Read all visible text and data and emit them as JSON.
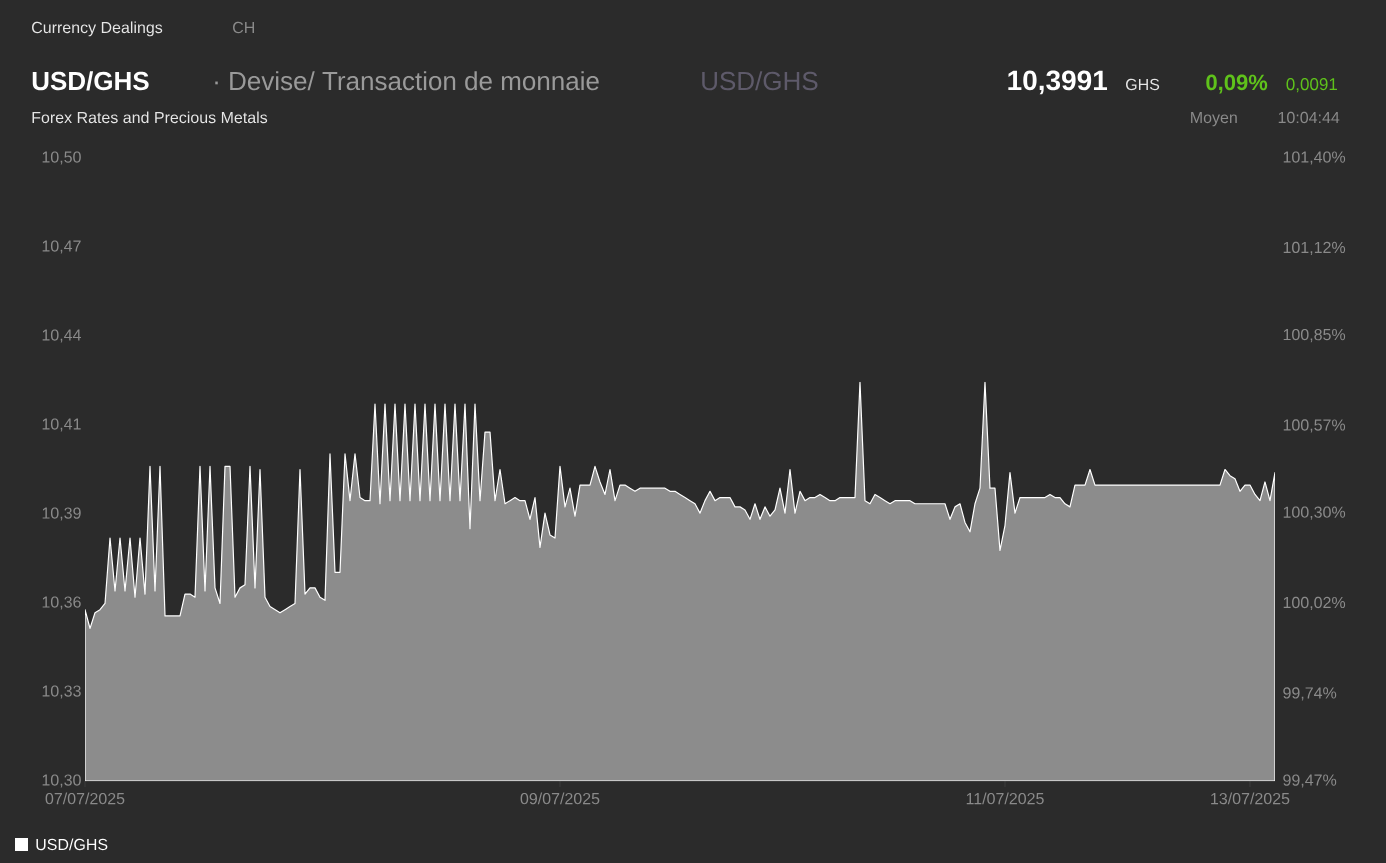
{
  "chart_data": {
    "type": "area",
    "title": "USD/GHS",
    "subtitle": "· Devise/ Transaction de monnaie",
    "annotations": [
      "Currency Dealings",
      "CH",
      "USD/GHS",
      "10,3991",
      "GHS",
      "0,09%",
      "0,0091",
      "Forex Rates and Precious Metals",
      "Moyen",
      "10:04:44"
    ],
    "categories": [
      "07/07/2025",
      null,
      null,
      null,
      null,
      null,
      null,
      null,
      null,
      null,
      null,
      null,
      null,
      null,
      null,
      null,
      null,
      null,
      null,
      null,
      null,
      null,
      null,
      null,
      null,
      null,
      null,
      null,
      null,
      null,
      null,
      null,
      null,
      null,
      null,
      null,
      null,
      null,
      null,
      null,
      null,
      null,
      null,
      null,
      null,
      null,
      null,
      null,
      null,
      null,
      null,
      null,
      null,
      null,
      null,
      null,
      null,
      null,
      null,
      null,
      null,
      null,
      null,
      null,
      null,
      null,
      null,
      null,
      null,
      null,
      null,
      null,
      null,
      null,
      null,
      null,
      null,
      null,
      null,
      null,
      null,
      null,
      null,
      null,
      null,
      null,
      null,
      null,
      null,
      null,
      null,
      null,
      null,
      null,
      null,
      "09/07/2025",
      null,
      null,
      null,
      null,
      null,
      null,
      null,
      null,
      null,
      null,
      null,
      null,
      null,
      null,
      null,
      null,
      null,
      null,
      null,
      null,
      null,
      null,
      null,
      null,
      null,
      null,
      null,
      null,
      null,
      null,
      null,
      null,
      null,
      null,
      null,
      null,
      null,
      null,
      null,
      null,
      null,
      null,
      null,
      null,
      null,
      null,
      null,
      null,
      null,
      null,
      null,
      null,
      null,
      null,
      null,
      null,
      null,
      null,
      null,
      null,
      null,
      null,
      null,
      null,
      null,
      null,
      null,
      null,
      null,
      null,
      null,
      null,
      null,
      null,
      null,
      null,
      null,
      null,
      null,
      null,
      null,
      null,
      null,
      null,
      null,
      null,
      null,
      null,
      "11/07/2025",
      null,
      null,
      null,
      null,
      null,
      null,
      null,
      null,
      null,
      null,
      null,
      null,
      null,
      null,
      null,
      null,
      null,
      null,
      null,
      null,
      null,
      null,
      null,
      null,
      null,
      null,
      null,
      null,
      null,
      null,
      null,
      null,
      null,
      null,
      null,
      null,
      null,
      null,
      null,
      null,
      null,
      null,
      null,
      null,
      null,
      null,
      null,
      null,
      "13/07/2025",
      null,
      null,
      null,
      null,
      null
    ],
    "ylim": [
      10.3,
      10.5
    ],
    "yticks": [
      {
        "value": 10.3,
        "label": "10,30"
      },
      {
        "value": 10.32857,
        "label": "10,33"
      },
      {
        "value": 10.35714,
        "label": "10,36"
      },
      {
        "value": 10.38571,
        "label": "10,39"
      },
      {
        "value": 10.41429,
        "label": "10,41"
      },
      {
        "value": 10.44286,
        "label": "10,44"
      },
      {
        "value": 10.47143,
        "label": "10,47"
      },
      {
        "value": 10.5,
        "label": "10,50"
      }
    ],
    "y2lim": [
      99.47,
      101.4
    ],
    "y2ticks": [
      {
        "value": 99.47,
        "label": "99,47%"
      },
      {
        "value": 99.74,
        "label": "99,74%"
      },
      {
        "value": 100.02,
        "label": "100,02%"
      },
      {
        "value": 100.3,
        "label": "100,30%"
      },
      {
        "value": 100.57,
        "label": "100,57%"
      },
      {
        "value": 100.85,
        "label": "100,85%"
      },
      {
        "value": 101.12,
        "label": "101,12%"
      },
      {
        "value": 101.4,
        "label": "101,40%"
      }
    ],
    "legend": "bottom left",
    "series": [
      {
        "name": "USD/GHS",
        "color": "#ffffff",
        "values": [
          10.355,
          10.349,
          10.354,
          10.355,
          10.357,
          10.378,
          10.361,
          10.378,
          10.361,
          10.378,
          10.359,
          10.378,
          10.36,
          10.401,
          10.361,
          10.401,
          10.353,
          10.353,
          10.353,
          10.353,
          10.36,
          10.36,
          10.359,
          10.401,
          10.361,
          10.401,
          10.362,
          10.357,
          10.401,
          10.401,
          10.359,
          10.362,
          10.363,
          10.401,
          10.362,
          10.4,
          10.359,
          10.356,
          10.355,
          10.354,
          10.355,
          10.356,
          10.357,
          10.4,
          10.36,
          10.362,
          10.362,
          10.359,
          10.358,
          10.405,
          10.367,
          10.367,
          10.405,
          10.39,
          10.405,
          10.391,
          10.39,
          10.39,
          10.421,
          10.389,
          10.421,
          10.39,
          10.421,
          10.39,
          10.421,
          10.39,
          10.421,
          10.39,
          10.421,
          10.39,
          10.421,
          10.39,
          10.421,
          10.39,
          10.421,
          10.39,
          10.421,
          10.381,
          10.421,
          10.39,
          10.412,
          10.412,
          10.39,
          10.4,
          10.389,
          10.39,
          10.391,
          10.39,
          10.39,
          10.384,
          10.391,
          10.375,
          10.386,
          10.379,
          10.378,
          10.401,
          10.388,
          10.394,
          10.385,
          10.395,
          10.395,
          10.395,
          10.401,
          10.396,
          10.392,
          10.4,
          10.39,
          10.395,
          10.395,
          10.394,
          10.393,
          10.394,
          10.394,
          10.394,
          10.394,
          10.394,
          10.394,
          10.393,
          10.393,
          10.392,
          10.391,
          10.39,
          10.389,
          10.386,
          10.39,
          10.393,
          10.39,
          10.391,
          10.391,
          10.391,
          10.388,
          10.388,
          10.387,
          10.384,
          10.389,
          10.384,
          10.388,
          10.385,
          10.387,
          10.394,
          10.386,
          10.4,
          10.386,
          10.393,
          10.39,
          10.391,
          10.391,
          10.392,
          10.391,
          10.39,
          10.39,
          10.391,
          10.391,
          10.391,
          10.391,
          10.428,
          10.39,
          10.389,
          10.392,
          10.391,
          10.39,
          10.389,
          10.39,
          10.39,
          10.39,
          10.39,
          10.389,
          10.389,
          10.389,
          10.389,
          10.389,
          10.389,
          10.389,
          10.384,
          10.388,
          10.389,
          10.383,
          10.38,
          10.389,
          10.394,
          10.428,
          10.394,
          10.394,
          10.374,
          10.382,
          10.399,
          10.386,
          10.391,
          10.391,
          10.391,
          10.391,
          10.391,
          10.391,
          10.392,
          10.391,
          10.391,
          10.389,
          10.388,
          10.395,
          10.395,
          10.395,
          10.4,
          10.395,
          10.395,
          10.395,
          10.395,
          10.395,
          10.395,
          10.395,
          10.395,
          10.395,
          10.395,
          10.395,
          10.395,
          10.395,
          10.395,
          10.395,
          10.395,
          10.395,
          10.395,
          10.395,
          10.395,
          10.395,
          10.395,
          10.395,
          10.395,
          10.395,
          10.395,
          10.4,
          10.398,
          10.397,
          10.393,
          10.395,
          10.395,
          10.392,
          10.39,
          10.396,
          10.39,
          10.399
        ]
      }
    ]
  }
}
